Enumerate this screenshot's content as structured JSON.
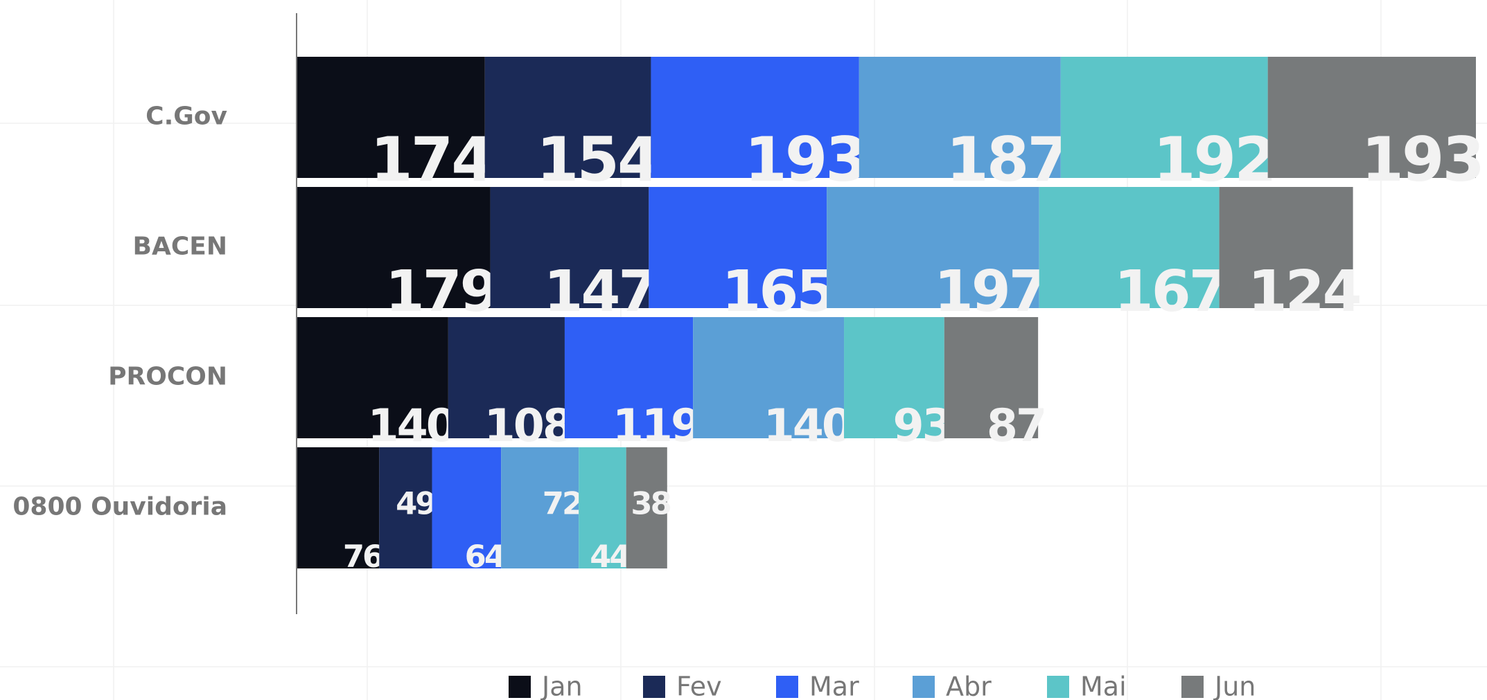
{
  "chart_data": {
    "type": "stacked-bar-horizontal",
    "categories": [
      "C.Gov",
      "BACEN",
      "PROCON",
      "0800 Ouvidoria"
    ],
    "series": [
      {
        "name": "Jan",
        "color": "#0b0e18",
        "values": [
          174,
          179,
          140,
          76
        ]
      },
      {
        "name": "Fev",
        "color": "#1b2a57",
        "values": [
          154,
          147,
          108,
          49
        ]
      },
      {
        "name": "Mar",
        "color": "#2f5ff5",
        "values": [
          193,
          165,
          119,
          64
        ]
      },
      {
        "name": "Abr",
        "color": "#5b9fd6",
        "values": [
          187,
          197,
          140,
          72
        ]
      },
      {
        "name": "Mai",
        "color": "#5cc5c8",
        "values": [
          192,
          167,
          93,
          44
        ]
      },
      {
        "name": "Jun",
        "color": "#777a7b",
        "values": [
          193,
          124,
          87,
          38
        ]
      }
    ],
    "legend": "bottom"
  }
}
